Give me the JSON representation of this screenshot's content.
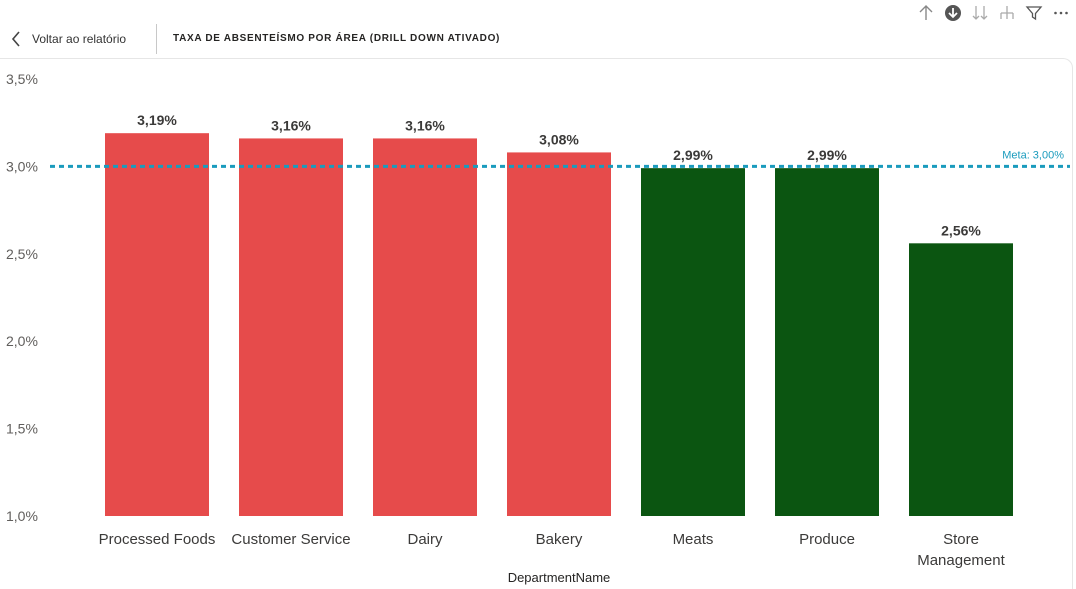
{
  "header": {
    "back_label": "Voltar ao relatório",
    "title": "TAXA DE ABSENTEÍSMO POR ÁREA (DRILL DOWN ATIVADO)",
    "icons": [
      "arrow-up-icon",
      "drill-down-circle-icon",
      "double-arrow-down-icon",
      "expand-hierarchy-icon",
      "filter-icon",
      "more-options-icon"
    ]
  },
  "chart_data": {
    "type": "bar",
    "categories": [
      "Processed Foods",
      "Customer Service",
      "Dairy",
      "Bakery",
      "Meats",
      "Produce",
      "Store Management"
    ],
    "category_lines": [
      [
        "Processed Foods"
      ],
      [
        "Customer Service"
      ],
      [
        "Dairy"
      ],
      [
        "Bakery"
      ],
      [
        "Meats"
      ],
      [
        "Produce"
      ],
      [
        "Store",
        "Management"
      ]
    ],
    "values": [
      3.19,
      3.16,
      3.16,
      3.08,
      2.99,
      2.99,
      2.56
    ],
    "data_labels": [
      "3,19%",
      "3,16%",
      "3,16%",
      "3,08%",
      "2,99%",
      "2,99%",
      "2,56%"
    ],
    "xlabel": "DepartmentName",
    "ylabel": "",
    "ylim": [
      1.0,
      3.5
    ],
    "yticks": [
      1.0,
      1.5,
      2.0,
      2.5,
      3.0,
      3.5
    ],
    "ytick_labels": [
      "1,0%",
      "1,5%",
      "2,0%",
      "2,5%",
      "3,0%",
      "3,5%"
    ],
    "target_line": {
      "value": 3.0,
      "label": "Meta: 3,00%"
    },
    "grid": false,
    "legend": "none",
    "colors": {
      "above_target": "#e64b4b",
      "below_target": "#0b5511",
      "target_line": "#1a9bbd"
    }
  }
}
